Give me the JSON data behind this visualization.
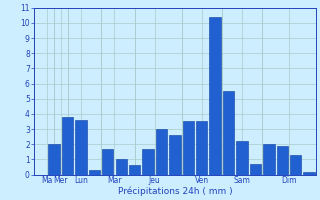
{
  "bars": [
    {
      "value": 0.0
    },
    {
      "value": 2.0
    },
    {
      "value": 3.8
    },
    {
      "value": 3.6
    },
    {
      "value": 0.3
    },
    {
      "value": 1.7
    },
    {
      "value": 1.0
    },
    {
      "value": 0.6
    },
    {
      "value": 1.7
    },
    {
      "value": 3.0
    },
    {
      "value": 2.6
    },
    {
      "value": 3.5
    },
    {
      "value": 3.5
    },
    {
      "value": 10.4
    },
    {
      "value": 5.5
    },
    {
      "value": 2.2
    },
    {
      "value": 0.7
    },
    {
      "value": 2.0
    },
    {
      "value": 1.9
    },
    {
      "value": 1.3
    },
    {
      "value": 0.2
    }
  ],
  "day_ticks": [
    0.5,
    1.5,
    3,
    5.5,
    8.5,
    12,
    15,
    18.5
  ],
  "day_labels": [
    "Ma",
    "Mer",
    "Lun",
    "Mar",
    "Jeu",
    "Ven",
    "Sam",
    "Dim"
  ],
  "day_separators_x": [
    1.0,
    2.0,
    4.5,
    7.0,
    10.5,
    13.5,
    16.5
  ],
  "bar_color": "#2060d0",
  "bar_edge_color": "#1040a0",
  "bg_color": "#cceeff",
  "grid_color": "#aacccc",
  "text_color": "#2244bb",
  "xlabel": "Précipitations 24h ( mm )",
  "ylim": [
    0,
    11
  ],
  "yticks": [
    0,
    1,
    2,
    3,
    4,
    5,
    6,
    7,
    8,
    9,
    10,
    11
  ],
  "xlim": [
    -0.5,
    20.5
  ]
}
